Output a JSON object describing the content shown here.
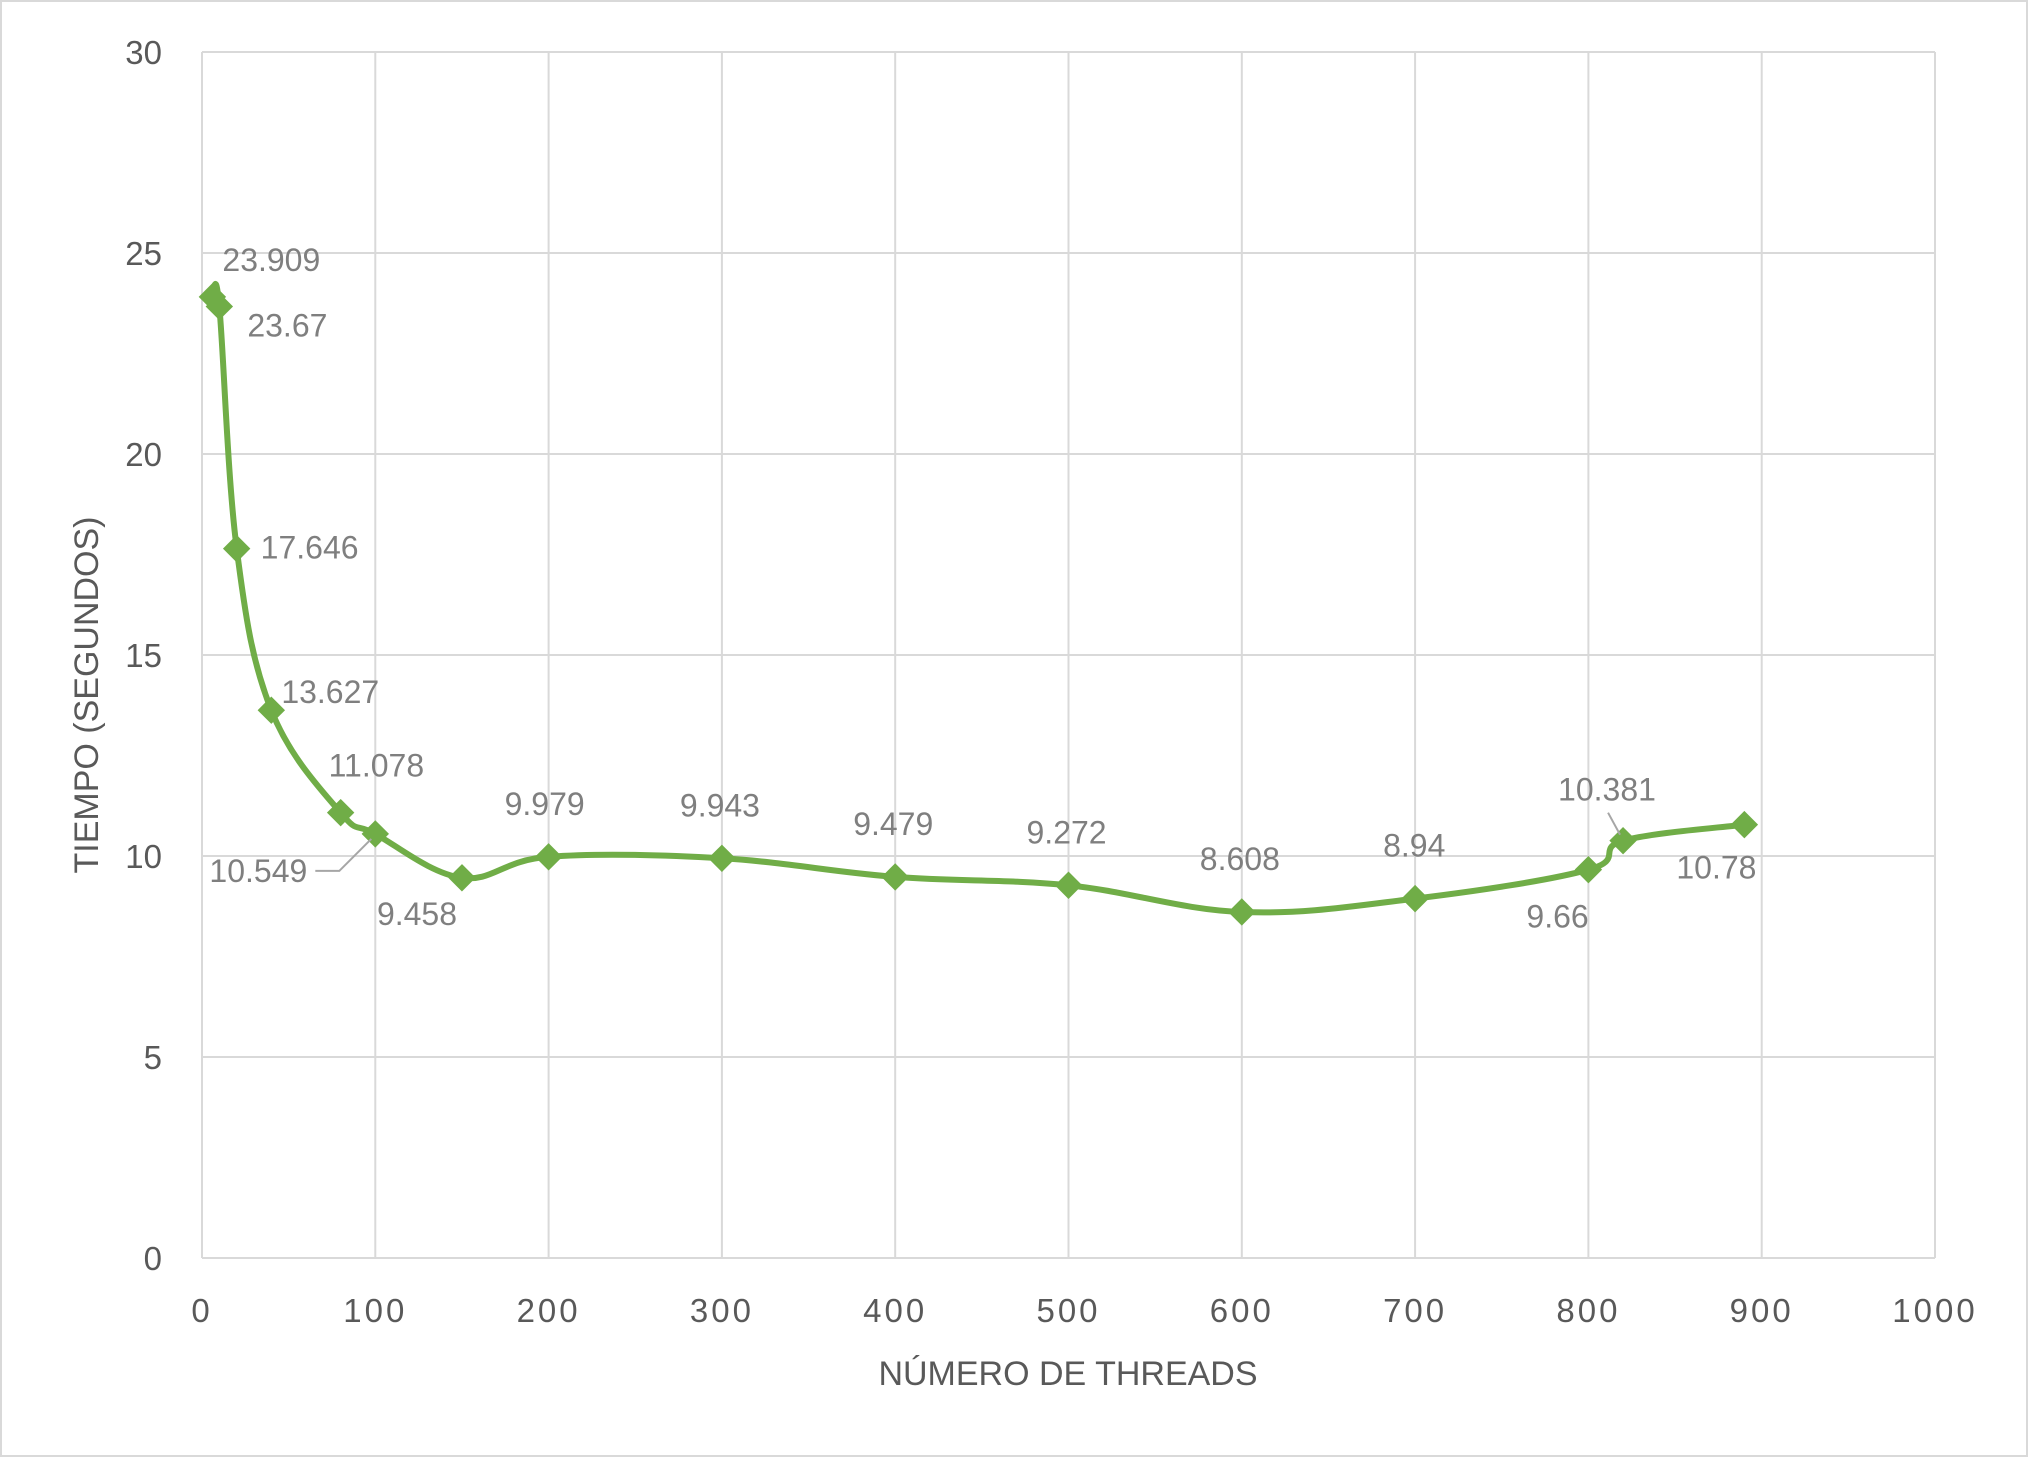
{
  "chart_data": {
    "type": "line",
    "title": "",
    "xlabel": "NÚMERO DE THREADS",
    "ylabel": "TIEMPO (SEGUNDOS)",
    "xlim": [
      0,
      1000
    ],
    "ylim": [
      0,
      30
    ],
    "x_ticks": [
      0,
      100,
      200,
      300,
      400,
      500,
      600,
      700,
      800,
      900,
      1000
    ],
    "y_ticks": [
      0,
      5,
      10,
      15,
      20,
      25,
      30
    ],
    "grid": true,
    "legend": "none",
    "smooth": true,
    "series": [
      {
        "color": "#70ad47",
        "marker": "diamond",
        "points": [
          {
            "x": 6,
            "y": 23.909,
            "label": "23.909"
          },
          {
            "x": 10,
            "y": 23.67,
            "label": "23.67"
          },
          {
            "x": 20,
            "y": 17.646,
            "label": "17.646"
          },
          {
            "x": 40,
            "y": 13.627,
            "label": "13.627"
          },
          {
            "x": 80,
            "y": 11.078,
            "label": "11.078"
          },
          {
            "x": 100,
            "y": 10.549,
            "label": "10.549"
          },
          {
            "x": 150,
            "y": 9.458,
            "label": "9.458"
          },
          {
            "x": 200,
            "y": 9.979,
            "label": "9.979"
          },
          {
            "x": 300,
            "y": 9.943,
            "label": "9.943"
          },
          {
            "x": 400,
            "y": 9.479,
            "label": "9.479"
          },
          {
            "x": 500,
            "y": 9.272,
            "label": "9.272"
          },
          {
            "x": 600,
            "y": 8.608,
            "label": "8.608"
          },
          {
            "x": 700,
            "y": 8.94,
            "label": "8.94"
          },
          {
            "x": 800,
            "y": 9.66,
            "label": "9.66"
          },
          {
            "x": 820,
            "y": 10.381,
            "label": "10.381"
          },
          {
            "x": 890,
            "y": 10.78,
            "label": "10.78"
          }
        ]
      }
    ]
  }
}
